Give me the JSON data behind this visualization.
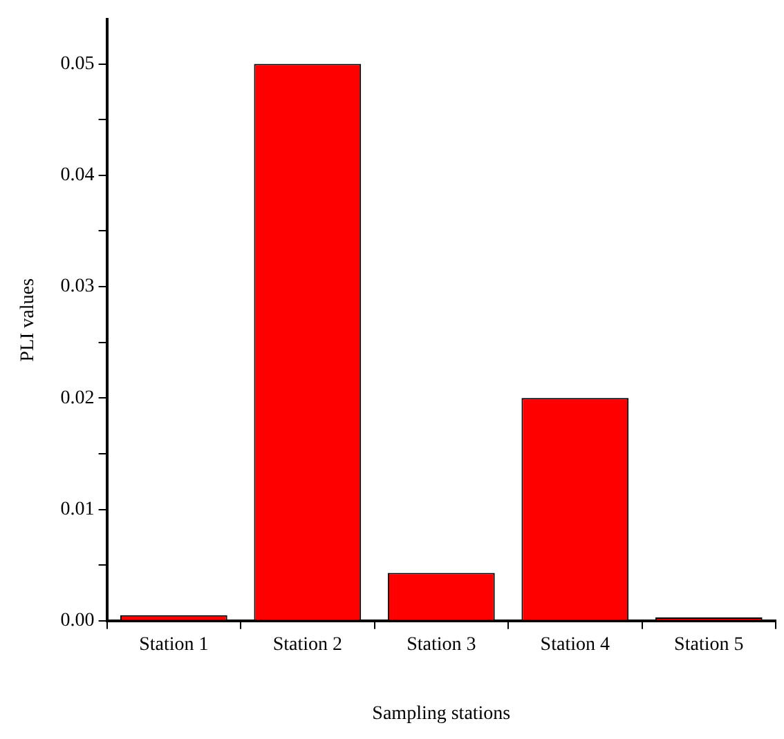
{
  "chart_data": {
    "type": "bar",
    "xlabel": "Sampling stations",
    "ylabel": "PLI values",
    "categories": [
      "Station 1",
      "Station 2",
      "Station 3",
      "Station 4",
      "Station 5"
    ],
    "values": [
      0.0005,
      0.05,
      0.0043,
      0.02,
      0.0003
    ],
    "color": "#ff0000",
    "ylim": [
      0,
      0.054
    ],
    "yticks": [
      {
        "value": 0,
        "label": "0.00"
      },
      {
        "value": 0.005,
        "label": null
      },
      {
        "value": 0.01,
        "label": "0.01"
      },
      {
        "value": 0.015,
        "label": null
      },
      {
        "value": 0.02,
        "label": "0.02"
      },
      {
        "value": 0.025,
        "label": null
      },
      {
        "value": 0.03,
        "label": "0.03"
      },
      {
        "value": 0.035,
        "label": null
      },
      {
        "value": 0.04,
        "label": "0.04"
      },
      {
        "value": 0.045,
        "label": null
      },
      {
        "value": 0.05,
        "label": "0.05"
      }
    ],
    "grid": false,
    "legend": false
  }
}
